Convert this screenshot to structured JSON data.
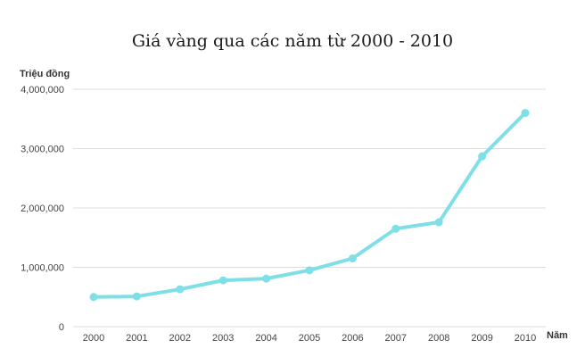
{
  "chart_data": {
    "type": "line",
    "title": "Giá vàng qua các năm từ 2000 - 2010",
    "ylabel": "Triệu đồng",
    "xlabel": "Năm",
    "categories": [
      "2000",
      "2001",
      "2002",
      "2003",
      "2004",
      "2005",
      "2006",
      "2007",
      "2008",
      "2009",
      "2010"
    ],
    "series": [
      {
        "values": [
          500000,
          510000,
          630000,
          780000,
          810000,
          950000,
          1150000,
          1650000,
          1760000,
          2870000,
          3600000
        ],
        "color": "#7ee0e6"
      }
    ],
    "yticks": [
      "0",
      "1,000,000",
      "2,000,000",
      "3,000,000",
      "4,000,000"
    ],
    "ylim": [
      0,
      4000000
    ],
    "grid": true,
    "legend": "none"
  }
}
